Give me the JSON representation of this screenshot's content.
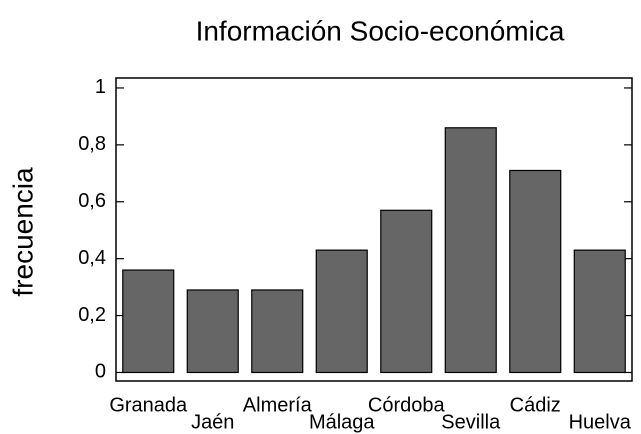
{
  "chart_data": {
    "type": "bar",
    "title": "Información Socio-económica",
    "ylabel": "frecuencia",
    "categories": [
      "Granada",
      "Jaén",
      "Almería",
      "Málaga",
      "Córdoba",
      "Sevilla",
      "Cádiz",
      "Huelva"
    ],
    "values": [
      0.36,
      0.29,
      0.29,
      0.43,
      0.57,
      0.86,
      0.71,
      0.43
    ],
    "color": "#666666",
    "ylim": [
      -0.03,
      1.035
    ],
    "yticks": [
      0,
      {
        "value": 0.2,
        "label": "0,2"
      },
      {
        "value": 0.4,
        "label": "0,4"
      },
      {
        "value": 0.6,
        "label": "0,6"
      },
      {
        "value": 0.8,
        "label": "0,8"
      },
      1
    ]
  }
}
